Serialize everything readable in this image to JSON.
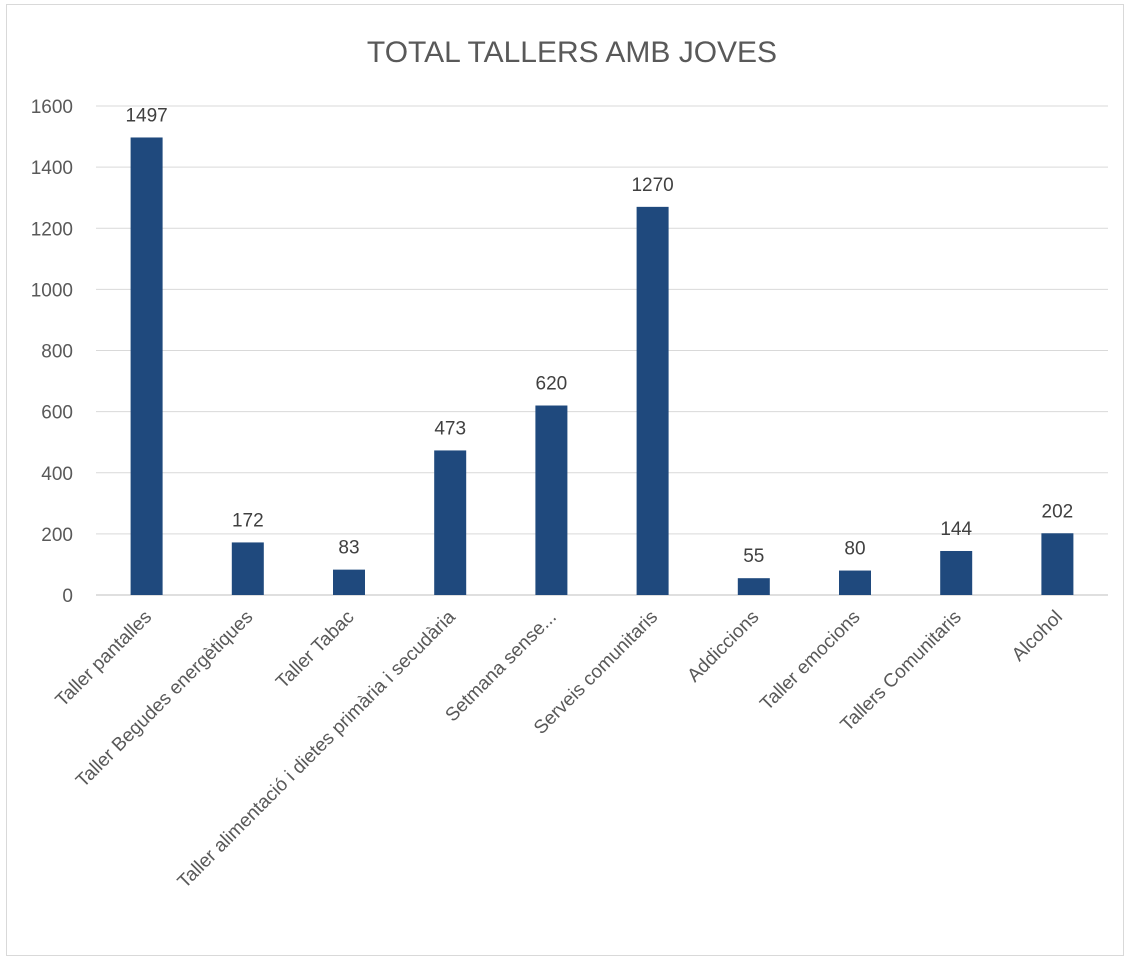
{
  "chart_data": {
    "type": "bar",
    "title": "TOTAL TALLERS AMB JOVES",
    "xlabel": "",
    "ylabel": "",
    "categories": [
      "Taller pantalles",
      "Taller Begudes energètiques",
      "Taller Tabac",
      "Taller alimentació i dietes primària i secudària",
      "Setmana sense...",
      "Serveis comunitaris",
      "Addiccions",
      "Taller emocions",
      "Tallers Comunitaris",
      "Alcohol"
    ],
    "values": [
      1497,
      172,
      83,
      473,
      620,
      1270,
      55,
      80,
      144,
      202
    ],
    "ylim": [
      0,
      1600
    ],
    "yticks": [
      0,
      200,
      400,
      600,
      800,
      1000,
      1200,
      1400,
      1600
    ],
    "grid": true,
    "legend": "none",
    "bar_color": "#1f497d",
    "grid_color": "#d9d9d9"
  }
}
